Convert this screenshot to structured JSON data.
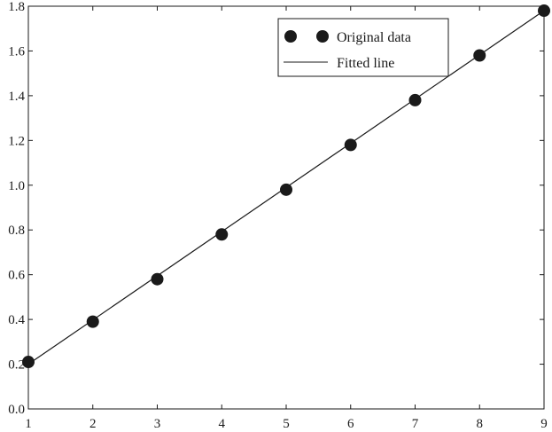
{
  "chart_data": {
    "type": "scatter",
    "title": "",
    "xlabel": "",
    "ylabel": "",
    "xlim": [
      1,
      9
    ],
    "ylim": [
      0.0,
      1.8
    ],
    "x_ticks": [
      1,
      2,
      3,
      4,
      5,
      6,
      7,
      8,
      9
    ],
    "x_tick_labels": [
      "1",
      "2",
      "3",
      "4",
      "5",
      "6",
      "7",
      "8",
      "9"
    ],
    "y_ticks": [
      0.0,
      0.2,
      0.4,
      0.6,
      0.8,
      1.0,
      1.2,
      1.4,
      1.6,
      1.8
    ],
    "y_tick_labels": [
      "0.0",
      "0.2",
      "0.4",
      "0.6",
      "0.8",
      "1.0",
      "1.2",
      "1.4",
      "1.6",
      "1.8"
    ],
    "grid": false,
    "legend_position": "top-right",
    "series": [
      {
        "name": "Original data",
        "kind": "scatter",
        "marker": "filled-circle",
        "color": "#1a1a1a",
        "x": [
          1,
          2,
          3,
          4,
          5,
          6,
          7,
          8,
          9
        ],
        "y": [
          0.21,
          0.39,
          0.58,
          0.78,
          0.98,
          1.18,
          1.38,
          1.58,
          1.78
        ]
      },
      {
        "name": "Fitted line",
        "kind": "line",
        "color": "#1a1a1a",
        "x": [
          1,
          9
        ],
        "y": [
          0.2,
          1.78
        ]
      }
    ]
  }
}
